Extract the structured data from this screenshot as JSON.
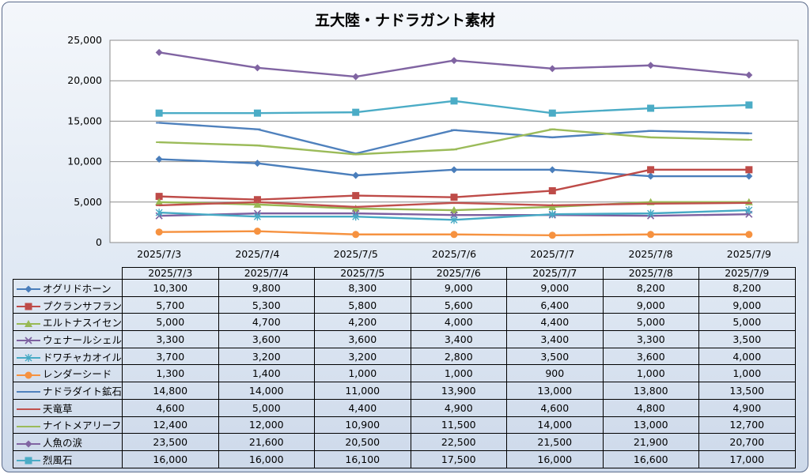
{
  "title": "五大陸・ナドラガント素材",
  "chart_data": {
    "type": "line",
    "title": "五大陸・ナドラガント素材",
    "categories": [
      "2025/7/3",
      "2025/7/4",
      "2025/7/5",
      "2025/7/6",
      "2025/7/7",
      "2025/7/8",
      "2025/7/9"
    ],
    "ylim": [
      0,
      25000
    ],
    "yticks": [
      0,
      5000,
      10000,
      15000,
      20000,
      25000
    ],
    "ytick_labels": [
      "0",
      "5,000",
      "10,000",
      "15,000",
      "20,000",
      "25,000"
    ],
    "grid": true,
    "legend": "data-table",
    "series": [
      {
        "name": "オグリドホーン",
        "color": "#4a7ebb",
        "marker": "diamond",
        "values": [
          10300,
          9800,
          8300,
          9000,
          9000,
          8200,
          8200
        ],
        "labels": [
          "10,300",
          "9,800",
          "8,300",
          "9,000",
          "9,000",
          "8,200",
          "8,200"
        ]
      },
      {
        "name": "プクランサフラン",
        "color": "#be4b48",
        "marker": "square",
        "values": [
          5700,
          5300,
          5800,
          5600,
          6400,
          9000,
          9000
        ],
        "labels": [
          "5,700",
          "5,300",
          "5,800",
          "5,600",
          "6,400",
          "9,000",
          "9,000"
        ]
      },
      {
        "name": "エルトナスイセン",
        "color": "#98b954",
        "marker": "triangle",
        "values": [
          5000,
          4700,
          4200,
          4000,
          4400,
          5000,
          5000
        ],
        "labels": [
          "5,000",
          "4,700",
          "4,200",
          "4,000",
          "4,400",
          "5,000",
          "5,000"
        ]
      },
      {
        "name": "ウェナールシェル",
        "color": "#7d60a0",
        "marker": "x",
        "values": [
          3300,
          3600,
          3600,
          3400,
          3400,
          3300,
          3500
        ],
        "labels": [
          "3,300",
          "3,600",
          "3,600",
          "3,400",
          "3,400",
          "3,300",
          "3,500"
        ]
      },
      {
        "name": "ドワチャカオイル",
        "color": "#46aac5",
        "marker": "star",
        "values": [
          3700,
          3200,
          3200,
          2800,
          3500,
          3600,
          4000
        ],
        "labels": [
          "3,700",
          "3,200",
          "3,200",
          "2,800",
          "3,500",
          "3,600",
          "4,000"
        ]
      },
      {
        "name": "レンダーシード",
        "color": "#f69240",
        "marker": "circle",
        "values": [
          1300,
          1400,
          1000,
          1000,
          900,
          1000,
          1000
        ],
        "labels": [
          "1,300",
          "1,400",
          "1,000",
          "1,000",
          "900",
          "1,000",
          "1,000"
        ]
      },
      {
        "name": "ナドラダイト鉱石",
        "color": "#4f81bd",
        "marker": "dash",
        "values": [
          14800,
          14000,
          11000,
          13900,
          13000,
          13800,
          13500
        ],
        "labels": [
          "14,800",
          "14,000",
          "11,000",
          "13,900",
          "13,000",
          "13,800",
          "13,500"
        ]
      },
      {
        "name": "天竜草",
        "color": "#c0504d",
        "marker": "dash",
        "values": [
          4600,
          5000,
          4400,
          4900,
          4600,
          4800,
          4900
        ],
        "labels": [
          "4,600",
          "5,000",
          "4,400",
          "4,900",
          "4,600",
          "4,800",
          "4,900"
        ]
      },
      {
        "name": "ナイトメアリーフ",
        "color": "#9bbb59",
        "marker": "dash",
        "values": [
          12400,
          12000,
          10900,
          11500,
          14000,
          13000,
          12700
        ],
        "labels": [
          "12,400",
          "12,000",
          "10,900",
          "11,500",
          "14,000",
          "13,000",
          "12,700"
        ]
      },
      {
        "name": "人魚の涙",
        "color": "#8064a2",
        "marker": "diamond",
        "values": [
          23500,
          21600,
          20500,
          22500,
          21500,
          21900,
          20700
        ],
        "labels": [
          "23,500",
          "21,600",
          "20,500",
          "22,500",
          "21,500",
          "21,900",
          "20,700"
        ]
      },
      {
        "name": "烈風石",
        "color": "#4bacc6",
        "marker": "square",
        "values": [
          16000,
          16000,
          16100,
          17500,
          16000,
          16600,
          17000
        ],
        "labels": [
          "16,000",
          "16,000",
          "16,100",
          "17,500",
          "16,000",
          "16,600",
          "17,000"
        ]
      }
    ]
  }
}
